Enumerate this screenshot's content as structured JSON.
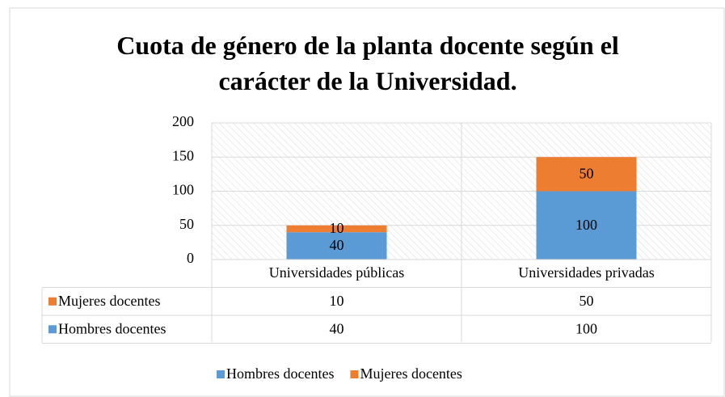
{
  "chart_data": {
    "type": "bar",
    "stacked": true,
    "title": "Cuota de género de la planta docente según el carácter de la Universidad.",
    "categories": [
      "Universidades públicas",
      "Universidades privadas"
    ],
    "series": [
      {
        "name": "Hombres docentes",
        "color": "#5b9bd5",
        "values": [
          40,
          100
        ]
      },
      {
        "name": "Mujeres docentes",
        "color": "#ed7d31",
        "values": [
          10,
          50
        ]
      }
    ],
    "ylim": [
      0,
      200
    ],
    "yticks": [
      0,
      50,
      100,
      150,
      200
    ],
    "grid": true,
    "data_table": true,
    "legend": "bottom"
  }
}
